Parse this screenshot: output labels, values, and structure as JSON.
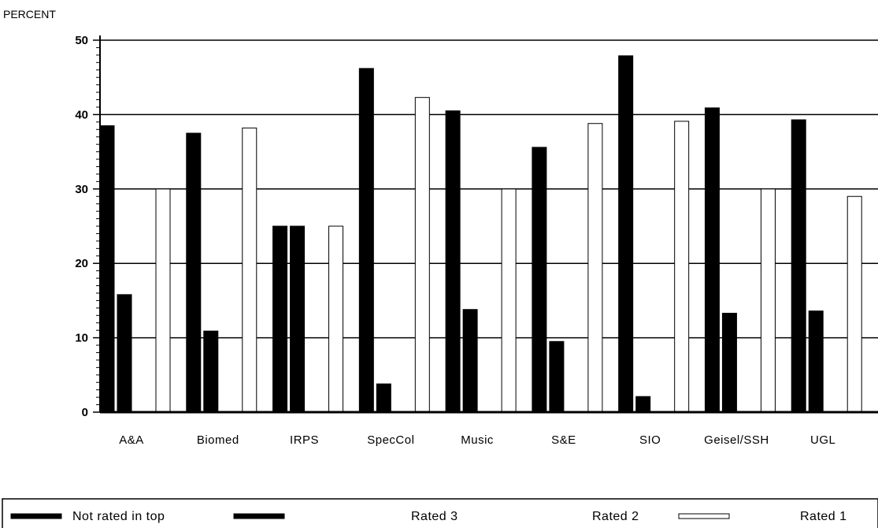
{
  "chart_data": {
    "type": "bar",
    "ylabel": "PERCENT",
    "xlabel": "",
    "ylim": [
      0,
      50
    ],
    "yticks": [
      0,
      10,
      20,
      30,
      40,
      50
    ],
    "grid": true,
    "legend_placement": "bottom",
    "categories": [
      "A&A",
      "Biomed",
      "IRPS",
      "SpecCol",
      "Music",
      "S&E",
      "SIO",
      "Geisel/SSH",
      "UGL"
    ],
    "series": [
      {
        "name": "Not rated in top",
        "color": "#000000",
        "style": "solid",
        "values": [
          38.5,
          37.5,
          25,
          46.2,
          40.5,
          35.6,
          47.9,
          40.9,
          39.3
        ]
      },
      {
        "name": "Rated 3",
        "color": "#000000",
        "style": "solid",
        "values": [
          15.8,
          10.9,
          25,
          3.8,
          13.8,
          9.5,
          2.1,
          13.3,
          13.6
        ]
      },
      {
        "name": "Rated 2",
        "color": "#000000",
        "style": "solid",
        "values": [
          0,
          0,
          0,
          0,
          0,
          0,
          0,
          0,
          0
        ]
      },
      {
        "name": "Rated 1",
        "color": "#ffffff",
        "style": "hollow",
        "values": [
          30,
          38.2,
          25,
          42.3,
          30,
          38.8,
          39.1,
          30,
          29
        ]
      }
    ]
  }
}
